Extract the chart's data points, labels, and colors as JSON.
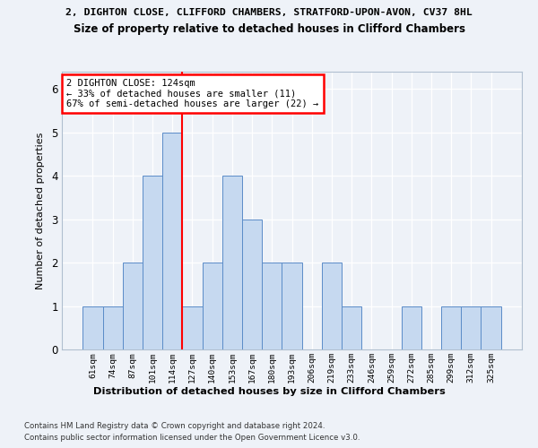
{
  "title_line1": "2, DIGHTON CLOSE, CLIFFORD CHAMBERS, STRATFORD-UPON-AVON, CV37 8HL",
  "title_line2": "Size of property relative to detached houses in Clifford Chambers",
  "xlabel": "Distribution of detached houses by size in Clifford Chambers",
  "ylabel": "Number of detached properties",
  "categories": [
    "61sqm",
    "74sqm",
    "87sqm",
    "101sqm",
    "114sqm",
    "127sqm",
    "140sqm",
    "153sqm",
    "167sqm",
    "180sqm",
    "193sqm",
    "206sqm",
    "219sqm",
    "233sqm",
    "246sqm",
    "259sqm",
    "272sqm",
    "285sqm",
    "299sqm",
    "312sqm",
    "325sqm"
  ],
  "values": [
    1,
    1,
    2,
    4,
    5,
    1,
    2,
    4,
    3,
    2,
    2,
    0,
    2,
    1,
    0,
    0,
    1,
    0,
    1,
    1,
    1
  ],
  "bar_color": "#c6d9f0",
  "bar_edge_color": "#5b8cc8",
  "property_line_x": 4.5,
  "annotation_line1": "2 DIGHTON CLOSE: 124sqm",
  "annotation_line2": "← 33% of detached houses are smaller (11)",
  "annotation_line3": "67% of semi-detached houses are larger (22) →",
  "red_line_color": "red",
  "ylim": [
    0,
    6.4
  ],
  "yticks": [
    0,
    1,
    2,
    3,
    4,
    5,
    6
  ],
  "footnote1": "Contains HM Land Registry data © Crown copyright and database right 2024.",
  "footnote2": "Contains public sector information licensed under the Open Government Licence v3.0.",
  "bg_color": "#eef2f8",
  "plot_bg_color": "#eef2f8"
}
